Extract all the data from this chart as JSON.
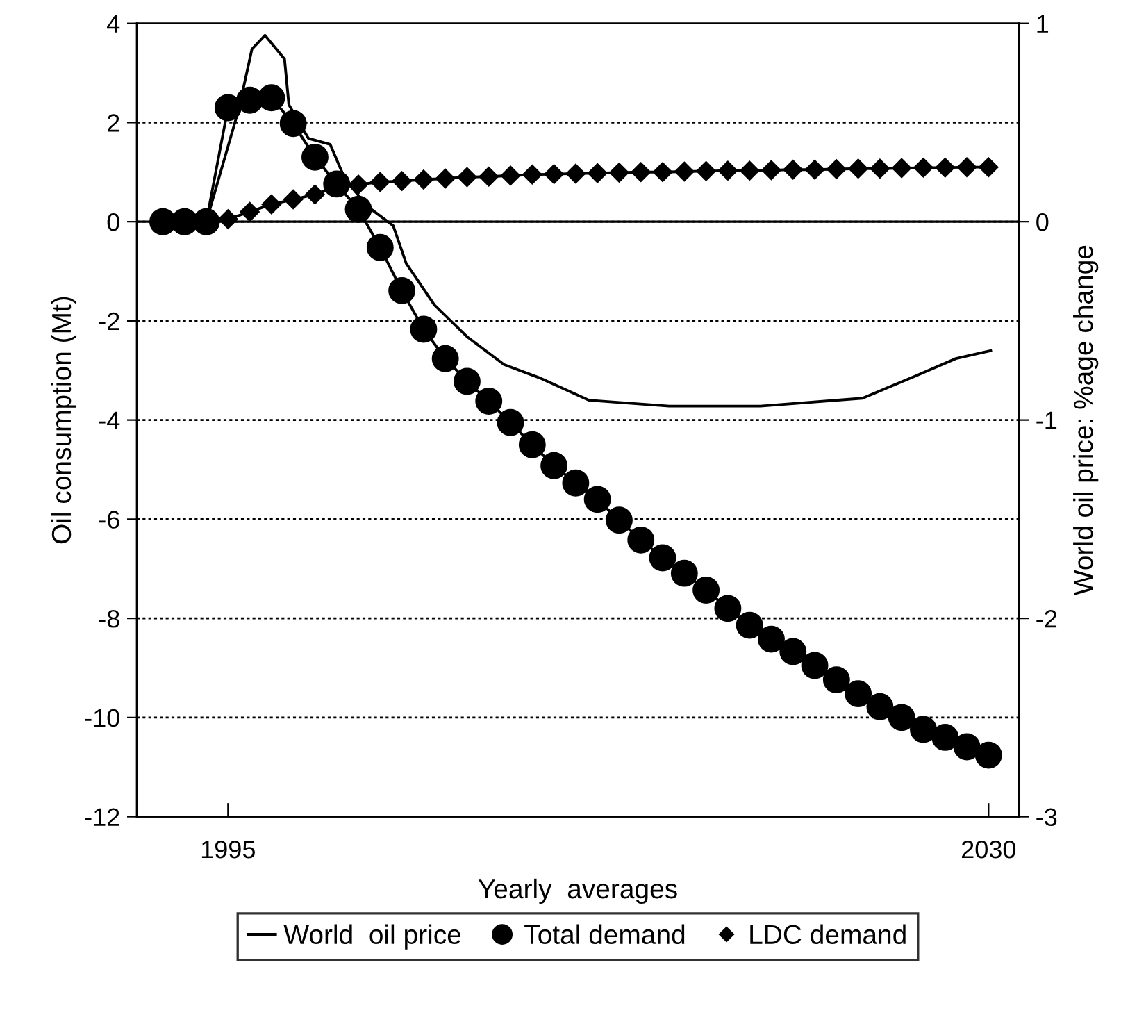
{
  "chart_data": {
    "type": "line",
    "xlabel": "Yearly  averages",
    "ylabel": "Oil consumption (Mt)",
    "y2label": "World oil price: %age change",
    "xlim": [
      1990.8,
      2031.4
    ],
    "xticks": [
      1995,
      2030
    ],
    "ylim": [
      -12,
      4
    ],
    "yticks": [
      -12,
      -10,
      -8,
      -6,
      -4,
      -2,
      0,
      2,
      4
    ],
    "y2lim": [
      -3,
      1
    ],
    "y2ticks": [
      -3,
      -2,
      -1,
      0,
      1
    ],
    "grid": "y",
    "legend": "bottom",
    "ref_lines": [
      {
        "axis": "y",
        "value": 0,
        "color": "#000000",
        "line_style": "solid"
      }
    ],
    "series": [
      {
        "name": "World  oil price",
        "color": "#000000",
        "axis": "y2",
        "marker": "none",
        "line_style": "solid",
        "x": [
          1994,
          1995.5,
          1996.1,
          1996.7,
          1997.6,
          1997.8,
          1998.7,
          1999.7,
          2000.4,
          2001.5,
          2002.6,
          2003.2,
          2004.5,
          2006,
          2007.7,
          2009.4,
          2011,
          2011.6,
          2015.3,
          2019.5,
          2024.2,
          2026.6,
          2028.5,
          2030.1
        ],
        "values": [
          0,
          0.57,
          0.87,
          0.94,
          0.82,
          0.59,
          0.42,
          0.39,
          0.21,
          0.07,
          -0.02,
          -0.21,
          -0.42,
          -0.58,
          -0.72,
          -0.79,
          -0.87,
          -0.9,
          -0.93,
          -0.93,
          -0.89,
          -0.78,
          -0.69,
          -0.65
        ]
      },
      {
        "name": "Total demand",
        "color": "#000000",
        "marker": "circle",
        "line_style": "solid",
        "x": [
          1992,
          1993,
          1994,
          1995,
          1996,
          1997,
          1998,
          1999,
          2000,
          2001,
          2002,
          2003,
          2004,
          2005,
          2006,
          2007,
          2008,
          2009,
          2010,
          2011,
          2012,
          2013,
          2014,
          2015,
          2016,
          2017,
          2018,
          2019,
          2020,
          2021,
          2022,
          2023,
          2024,
          2025,
          2026,
          2027,
          2028,
          2029,
          2030
        ],
        "values": [
          0,
          0,
          0,
          2.3,
          2.45,
          2.5,
          1.98,
          1.3,
          0.76,
          0.25,
          -0.52,
          -1.39,
          -2.17,
          -2.76,
          -3.22,
          -3.62,
          -4.05,
          -4.5,
          -4.92,
          -5.27,
          -5.6,
          -6.02,
          -6.42,
          -6.78,
          -7.09,
          -7.43,
          -7.8,
          -8.14,
          -8.42,
          -8.67,
          -8.95,
          -9.24,
          -9.52,
          -9.78,
          -10.0,
          -10.24,
          -10.4,
          -10.59,
          -10.76
        ]
      },
      {
        "name": "LDC demand",
        "color": "#000000",
        "marker": "diamond",
        "line_style": "solid",
        "x": [
          1995,
          1996,
          1997,
          1998,
          1999,
          2000,
          2001,
          2002,
          2003,
          2004,
          2005,
          2006,
          2007,
          2008,
          2009,
          2010,
          2011,
          2012,
          2013,
          2014,
          2015,
          2016,
          2017,
          2018,
          2019,
          2020,
          2021,
          2022,
          2023,
          2024,
          2025,
          2026,
          2027,
          2028,
          2029,
          2030
        ],
        "values": [
          0.05,
          0.2,
          0.35,
          0.45,
          0.55,
          0.7,
          0.75,
          0.8,
          0.82,
          0.85,
          0.87,
          0.9,
          0.91,
          0.93,
          0.95,
          0.96,
          0.97,
          0.98,
          0.99,
          1.0,
          1.0,
          1.01,
          1.02,
          1.03,
          1.03,
          1.04,
          1.05,
          1.05,
          1.06,
          1.07,
          1.07,
          1.08,
          1.09,
          1.09,
          1.1,
          1.1
        ]
      }
    ]
  }
}
